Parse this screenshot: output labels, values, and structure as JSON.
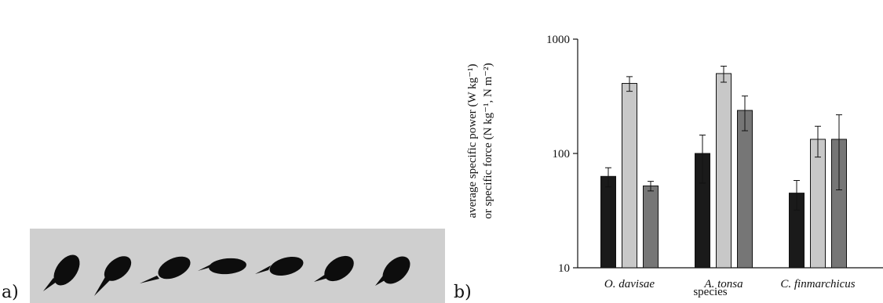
{
  "image_panel": {
    "label": "a)"
  },
  "chart_data": {
    "type": "bar",
    "panel_label": "b)",
    "ylabel_lines": [
      "average specific power (W kg⁻¹)",
      "or specific force (N kg⁻¹, N m⁻²)"
    ],
    "xlabel": "species",
    "categories": [
      "O. davisae",
      "A. tonsa",
      "C. finmarchicus"
    ],
    "series": [
      {
        "color": "#1a1a1a",
        "values": [
          63,
          100,
          45
        ],
        "errors": [
          12,
          45,
          13
        ]
      },
      {
        "color": "#c8c8c8",
        "values": [
          410,
          500,
          133
        ],
        "errors": [
          60,
          80,
          40
        ]
      },
      {
        "color": "#767676",
        "values": [
          52,
          238,
          133
        ],
        "errors": [
          5,
          80,
          85
        ]
      }
    ],
    "log_scale": true,
    "ylim": [
      10,
      1000
    ],
    "yticks": [
      10,
      100,
      1000
    ]
  }
}
